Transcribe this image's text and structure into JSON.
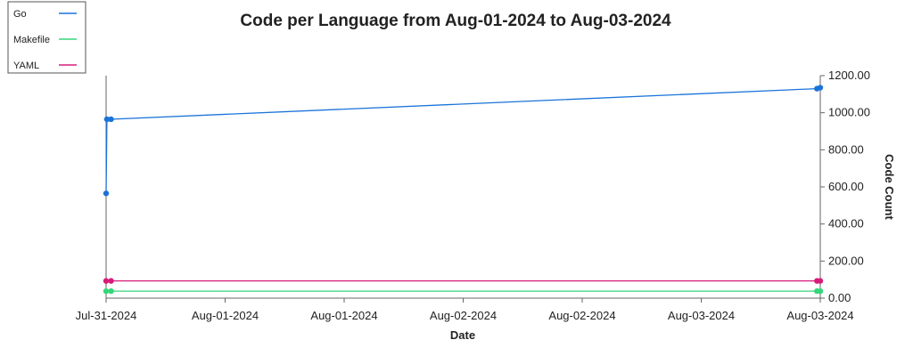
{
  "chart_data": {
    "type": "line",
    "title": "Code per Language from Aug-01-2024 to Aug-03-2024",
    "xlabel": "Date",
    "ylabel": "Code Count",
    "x_tick_labels": [
      "Jul-31-2024",
      "Aug-01-2024",
      "Aug-01-2024",
      "Aug-02-2024",
      "Aug-02-2024",
      "Aug-03-2024",
      "Aug-03-2024"
    ],
    "y_tick_labels": [
      "0.00",
      "200.00",
      "400.00",
      "600.00",
      "800.00",
      "1000.00",
      "1200.00"
    ],
    "ylim": [
      0,
      1200
    ],
    "xlim": [
      "2024-07-31T00:00",
      "2024-08-03T00:00"
    ],
    "y_axis_side": "right",
    "grid": false,
    "legend_position": "top-left",
    "series": [
      {
        "name": "Go",
        "color": "#1a73d9",
        "points": [
          [
            "2024-07-31T00:00",
            565
          ],
          [
            "2024-07-31T00:05",
            965
          ],
          [
            "2024-07-31T00:30",
            965
          ],
          [
            "2024-08-02T23:40",
            1130
          ],
          [
            "2024-08-03T00:00",
            1135
          ]
        ]
      },
      {
        "name": "Makefile",
        "color": "#35d67a",
        "points": [
          [
            "2024-07-31T00:00",
            38
          ],
          [
            "2024-07-31T00:30",
            38
          ],
          [
            "2024-08-02T23:40",
            38
          ],
          [
            "2024-08-03T00:00",
            38
          ]
        ]
      },
      {
        "name": "YAML",
        "color": "#d81b7a",
        "points": [
          [
            "2024-07-31T00:00",
            93
          ],
          [
            "2024-07-31T00:30",
            93
          ],
          [
            "2024-08-02T23:40",
            93
          ],
          [
            "2024-08-03T00:00",
            93
          ]
        ]
      }
    ]
  }
}
